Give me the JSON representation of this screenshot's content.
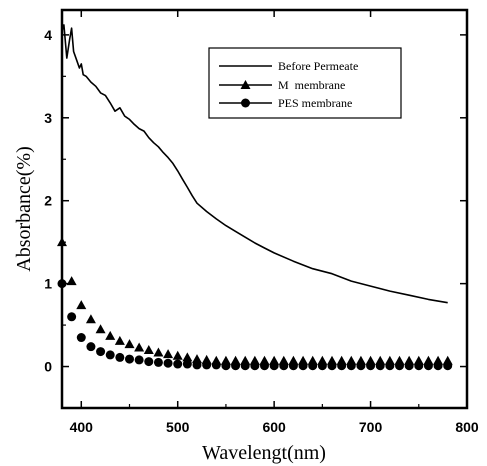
{
  "chart_data": {
    "type": "line",
    "title": "",
    "xlabel": "Wavelengt(nm)",
    "ylabel": "Absorbance(%)",
    "xlim": [
      380,
      800
    ],
    "ylim": [
      -0.5,
      4.3
    ],
    "x_ticks": [
      "400",
      "500",
      "600",
      "700",
      "800"
    ],
    "y_ticks": [
      "0",
      "1",
      "2",
      "3",
      "4"
    ],
    "grid": false,
    "legend_position": "top-right",
    "series": [
      {
        "name": "Before Permeate",
        "marker": "none",
        "color": "#000000",
        "x": [
          380,
          382,
          385,
          388,
          390,
          392,
          395,
          398,
          400,
          402,
          405,
          410,
          415,
          420,
          425,
          430,
          435,
          440,
          445,
          450,
          455,
          460,
          465,
          470,
          475,
          480,
          485,
          490,
          495,
          500,
          505,
          510,
          515,
          520,
          530,
          540,
          550,
          560,
          570,
          580,
          590,
          600,
          620,
          640,
          660,
          680,
          700,
          720,
          740,
          760,
          780
        ],
        "y": [
          4.05,
          4.12,
          3.72,
          3.95,
          4.08,
          3.8,
          3.7,
          3.6,
          3.65,
          3.52,
          3.5,
          3.43,
          3.38,
          3.3,
          3.27,
          3.18,
          3.08,
          3.12,
          3.02,
          2.98,
          2.92,
          2.87,
          2.84,
          2.76,
          2.7,
          2.65,
          2.58,
          2.52,
          2.45,
          2.36,
          2.26,
          2.16,
          2.06,
          1.97,
          1.87,
          1.78,
          1.7,
          1.63,
          1.56,
          1.49,
          1.43,
          1.37,
          1.27,
          1.18,
          1.12,
          1.03,
          0.97,
          0.91,
          0.86,
          0.81,
          0.77
        ]
      },
      {
        "name": "M  membrane",
        "marker": "triangle",
        "color": "#000000",
        "x": [
          380,
          390,
          400,
          410,
          420,
          430,
          440,
          450,
          460,
          470,
          480,
          490,
          500,
          510,
          520,
          530,
          540,
          550,
          560,
          570,
          580,
          590,
          600,
          610,
          620,
          630,
          640,
          650,
          660,
          670,
          680,
          690,
          700,
          710,
          720,
          730,
          740,
          750,
          760,
          770,
          780
        ],
        "y": [
          1.5,
          1.03,
          0.74,
          0.57,
          0.45,
          0.37,
          0.31,
          0.27,
          0.23,
          0.2,
          0.17,
          0.15,
          0.13,
          0.11,
          0.09,
          0.08,
          0.07,
          0.07,
          0.07,
          0.07,
          0.07,
          0.07,
          0.07,
          0.07,
          0.07,
          0.07,
          0.07,
          0.07,
          0.07,
          0.07,
          0.07,
          0.07,
          0.07,
          0.07,
          0.07,
          0.07,
          0.07,
          0.07,
          0.07,
          0.07,
          0.07
        ]
      },
      {
        "name": "PES membrane",
        "marker": "circle",
        "color": "#000000",
        "x": [
          380,
          390,
          400,
          410,
          420,
          430,
          440,
          450,
          460,
          470,
          480,
          490,
          500,
          510,
          520,
          530,
          540,
          550,
          560,
          570,
          580,
          590,
          600,
          610,
          620,
          630,
          640,
          650,
          660,
          670,
          680,
          690,
          700,
          710,
          720,
          730,
          740,
          750,
          760,
          770,
          780
        ],
        "y": [
          1.0,
          0.6,
          0.35,
          0.24,
          0.18,
          0.14,
          0.11,
          0.09,
          0.08,
          0.06,
          0.05,
          0.04,
          0.03,
          0.03,
          0.02,
          0.02,
          0.02,
          0.01,
          0.01,
          0.01,
          0.01,
          0.01,
          0.01,
          0.01,
          0.01,
          0.01,
          0.01,
          0.01,
          0.01,
          0.01,
          0.01,
          0.01,
          0.01,
          0.01,
          0.01,
          0.01,
          0.01,
          0.01,
          0.01,
          0.01,
          0.01
        ]
      }
    ]
  }
}
